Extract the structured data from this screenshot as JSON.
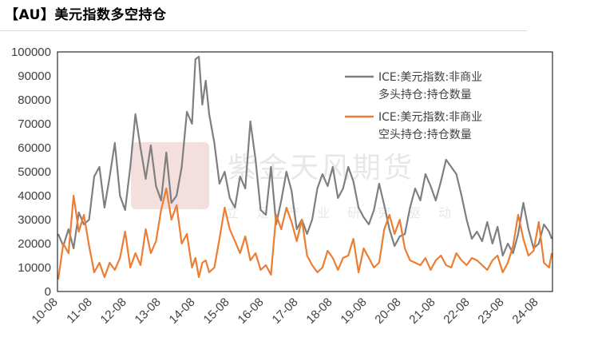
{
  "title": "【AU】美元指数多空持仓",
  "watermark": {
    "main": "紫金天风期货",
    "sub": [
      "立",
      "足",
      "产",
      "业",
      "研",
      "究",
      "驱",
      "动"
    ]
  },
  "colors": {
    "long": "#7f7f7f",
    "short": "#ed7d31",
    "axis": "#000000",
    "text": "#404040"
  },
  "chart_data": {
    "type": "line",
    "title": "",
    "xlabel": "",
    "ylabel": "",
    "ylim": [
      0,
      100000
    ],
    "yticks": [
      "0",
      "10000",
      "20000",
      "30000",
      "40000",
      "50000",
      "60000",
      "70000",
      "80000",
      "90000",
      "100000"
    ],
    "xticks": [
      "10-08",
      "11-08",
      "12-08",
      "13-08",
      "14-08",
      "15-08",
      "16-08",
      "17-08",
      "18-08",
      "19-08",
      "20-08",
      "21-08",
      "22-08",
      "23-08",
      "24-08"
    ],
    "x_range": [
      2010.58,
      2025.0
    ],
    "legend_position": "top-right",
    "grid": false,
    "series": [
      {
        "name": "ICE:美元指数:非商业多头持仓:持仓数量",
        "legend_lines": [
          "ICE:美元指数:非商业",
          "多头持仓:持仓数量"
        ],
        "color": "#7f7f7f",
        "x": [
          2010.6,
          2010.75,
          2010.9,
          2011.05,
          2011.2,
          2011.35,
          2011.5,
          2011.65,
          2011.8,
          2011.95,
          2012.1,
          2012.25,
          2012.4,
          2012.55,
          2012.7,
          2012.85,
          2013.0,
          2013.15,
          2013.3,
          2013.45,
          2013.6,
          2013.75,
          2013.9,
          2014.05,
          2014.2,
          2014.35,
          2014.5,
          2014.6,
          2014.7,
          2014.8,
          2014.9,
          2015.0,
          2015.15,
          2015.3,
          2015.45,
          2015.6,
          2015.75,
          2015.9,
          2016.05,
          2016.2,
          2016.35,
          2016.5,
          2016.65,
          2016.8,
          2016.95,
          2017.1,
          2017.25,
          2017.4,
          2017.55,
          2017.7,
          2017.85,
          2018.0,
          2018.15,
          2018.3,
          2018.45,
          2018.6,
          2018.75,
          2018.9,
          2019.05,
          2019.2,
          2019.35,
          2019.5,
          2019.65,
          2019.8,
          2019.95,
          2020.1,
          2020.25,
          2020.4,
          2020.55,
          2020.7,
          2020.85,
          2021.0,
          2021.15,
          2021.3,
          2021.45,
          2021.6,
          2021.75,
          2021.9,
          2022.05,
          2022.2,
          2022.35,
          2022.5,
          2022.65,
          2022.8,
          2022.95,
          2023.1,
          2023.25,
          2023.4,
          2023.55,
          2023.7,
          2023.85,
          2024.0,
          2024.15,
          2024.3,
          2024.45,
          2024.6,
          2024.75,
          2024.9,
          2024.98
        ],
        "values": [
          24000,
          19000,
          26000,
          18000,
          33000,
          28000,
          30000,
          48000,
          52000,
          35000,
          48000,
          62000,
          40000,
          34000,
          52000,
          74000,
          60000,
          47000,
          61000,
          44000,
          38000,
          58000,
          37000,
          40000,
          52000,
          75000,
          70000,
          97000,
          98000,
          78000,
          88000,
          74000,
          62000,
          45000,
          50000,
          39000,
          35000,
          48000,
          43000,
          71000,
          55000,
          34000,
          32000,
          52000,
          28000,
          38000,
          50000,
          42000,
          26000,
          30000,
          24000,
          30000,
          43000,
          49000,
          44000,
          52000,
          39000,
          43000,
          52000,
          46000,
          35000,
          31000,
          28000,
          34000,
          45000,
          36000,
          26000,
          19000,
          23000,
          24000,
          35000,
          43000,
          38000,
          49000,
          44000,
          38000,
          46000,
          55000,
          52000,
          49000,
          40000,
          30000,
          22000,
          25000,
          21000,
          29000,
          20000,
          27000,
          15000,
          20000,
          16000,
          24000,
          37000,
          26000,
          18000,
          20000,
          28000,
          25000,
          22000
        ]
      },
      {
        "name": "ICE:美元指数:非商业空头持仓:持仓数量",
        "legend_lines": [
          "ICE:美元指数:非商业",
          "空头持仓:持仓数量"
        ],
        "color": "#ed7d31",
        "x": [
          2010.6,
          2010.75,
          2010.9,
          2011.05,
          2011.2,
          2011.35,
          2011.5,
          2011.65,
          2011.8,
          2011.95,
          2012.1,
          2012.25,
          2012.4,
          2012.55,
          2012.7,
          2012.85,
          2013.0,
          2013.15,
          2013.3,
          2013.45,
          2013.6,
          2013.75,
          2013.9,
          2014.05,
          2014.2,
          2014.35,
          2014.5,
          2014.6,
          2014.7,
          2014.8,
          2014.9,
          2015.0,
          2015.15,
          2015.3,
          2015.45,
          2015.6,
          2015.75,
          2015.9,
          2016.05,
          2016.2,
          2016.35,
          2016.5,
          2016.65,
          2016.8,
          2016.95,
          2017.1,
          2017.25,
          2017.4,
          2017.55,
          2017.7,
          2017.85,
          2018.0,
          2018.15,
          2018.3,
          2018.45,
          2018.6,
          2018.75,
          2018.9,
          2019.05,
          2019.2,
          2019.35,
          2019.5,
          2019.65,
          2019.8,
          2019.95,
          2020.1,
          2020.25,
          2020.4,
          2020.55,
          2020.7,
          2020.85,
          2021.0,
          2021.15,
          2021.3,
          2021.45,
          2021.6,
          2021.75,
          2021.9,
          2022.05,
          2022.2,
          2022.35,
          2022.5,
          2022.65,
          2022.8,
          2022.95,
          2023.1,
          2023.25,
          2023.4,
          2023.55,
          2023.7,
          2023.85,
          2024.0,
          2024.15,
          2024.3,
          2024.45,
          2024.6,
          2024.75,
          2024.9,
          2024.98
        ],
        "values": [
          5000,
          20000,
          16000,
          40000,
          25000,
          32000,
          19000,
          8000,
          12000,
          6000,
          12000,
          9000,
          14000,
          25000,
          10000,
          16000,
          11000,
          26000,
          16000,
          21000,
          34000,
          43000,
          30000,
          36000,
          20000,
          24000,
          10000,
          14000,
          6000,
          12000,
          13000,
          8000,
          10000,
          22000,
          35000,
          26000,
          21000,
          16000,
          23000,
          13000,
          16000,
          9000,
          11000,
          7000,
          32000,
          26000,
          35000,
          29000,
          21000,
          30000,
          15000,
          11000,
          8000,
          10000,
          17000,
          14000,
          9000,
          14000,
          15000,
          22000,
          8000,
          18000,
          14000,
          10000,
          12000,
          26000,
          32000,
          24000,
          30000,
          18000,
          13000,
          12000,
          11000,
          14000,
          9000,
          13000,
          15000,
          11000,
          10000,
          16000,
          13000,
          11000,
          14000,
          13000,
          11000,
          9000,
          13000,
          15000,
          8000,
          12000,
          19000,
          32000,
          22000,
          15000,
          17000,
          29000,
          12000,
          10000,
          16000
        ]
      }
    ]
  }
}
